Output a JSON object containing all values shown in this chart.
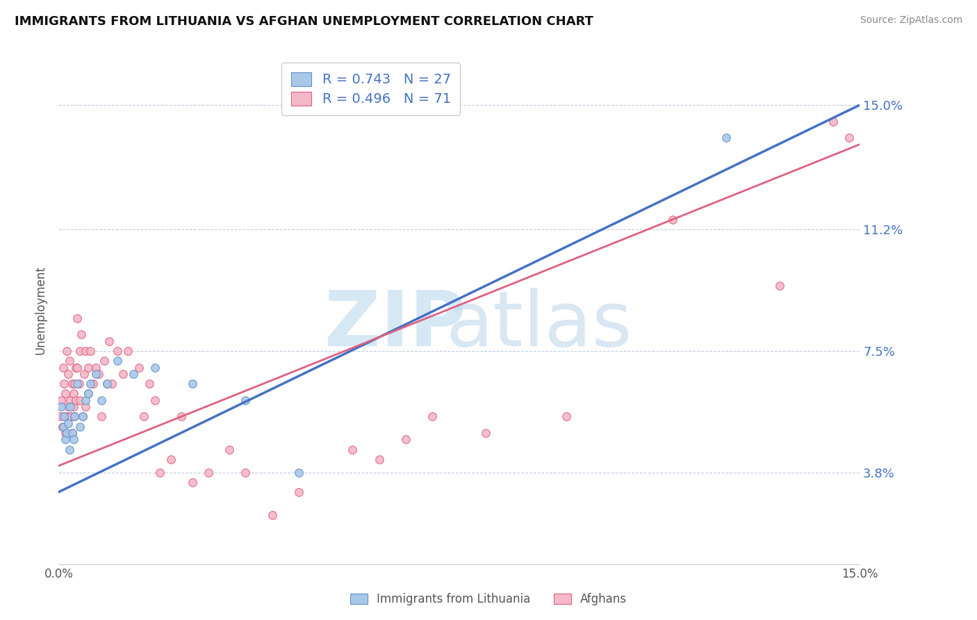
{
  "title": "IMMIGRANTS FROM LITHUANIA VS AFGHAN UNEMPLOYMENT CORRELATION CHART",
  "source": "Source: ZipAtlas.com",
  "ylabel": "Unemployment",
  "ytick_values": [
    3.8,
    7.5,
    11.2,
    15.0
  ],
  "xmin": 0.0,
  "xmax": 15.0,
  "ymin": 1.0,
  "ymax": 16.5,
  "legend1_r": "0.743",
  "legend1_n": "27",
  "legend2_r": "0.496",
  "legend2_n": "71",
  "color_blue_fill": "#a8c8e8",
  "color_pink_fill": "#f4b8c8",
  "color_blue_edge": "#6090c8",
  "color_pink_edge": "#e06080",
  "color_blue_line": "#4472c4",
  "color_pink_line": "#e06080",
  "color_text_blue": "#4472c4",
  "blue_line_start_y": 3.2,
  "blue_line_end_y": 15.0,
  "pink_line_start_y": 4.0,
  "pink_line_end_y": 13.8,
  "series1_x": [
    0.05,
    0.08,
    0.1,
    0.12,
    0.15,
    0.18,
    0.2,
    0.22,
    0.25,
    0.28,
    0.3,
    0.35,
    0.4,
    0.45,
    0.5,
    0.55,
    0.6,
    0.7,
    0.8,
    0.9,
    1.1,
    1.4,
    1.8,
    2.5,
    3.5,
    4.5,
    12.5
  ],
  "series1_y": [
    5.8,
    5.2,
    5.5,
    4.8,
    5.0,
    5.3,
    4.5,
    5.8,
    5.0,
    4.8,
    5.5,
    6.5,
    5.2,
    5.5,
    6.0,
    6.2,
    6.5,
    6.8,
    6.0,
    6.5,
    7.2,
    6.8,
    7.0,
    6.5,
    6.0,
    3.8,
    14.0
  ],
  "series2_x": [
    0.03,
    0.05,
    0.07,
    0.08,
    0.1,
    0.1,
    0.12,
    0.13,
    0.15,
    0.15,
    0.18,
    0.18,
    0.2,
    0.2,
    0.22,
    0.23,
    0.25,
    0.25,
    0.28,
    0.28,
    0.3,
    0.3,
    0.32,
    0.32,
    0.35,
    0.35,
    0.38,
    0.4,
    0.4,
    0.42,
    0.45,
    0.48,
    0.5,
    0.5,
    0.55,
    0.55,
    0.6,
    0.65,
    0.7,
    0.75,
    0.8,
    0.85,
    0.9,
    0.95,
    1.0,
    1.1,
    1.2,
    1.3,
    1.5,
    1.6,
    1.7,
    1.8,
    1.9,
    2.1,
    2.3,
    2.5,
    2.8,
    3.2,
    3.5,
    4.0,
    4.5,
    5.5,
    6.0,
    6.5,
    7.0,
    8.0,
    9.5,
    11.5,
    13.5,
    14.5,
    14.8
  ],
  "series2_y": [
    5.5,
    6.0,
    5.2,
    7.0,
    5.5,
    6.5,
    5.0,
    6.2,
    5.5,
    7.5,
    5.8,
    6.8,
    5.5,
    7.2,
    6.0,
    5.5,
    6.5,
    5.0,
    6.2,
    5.8,
    6.5,
    5.5,
    7.0,
    6.0,
    8.5,
    7.0,
    6.5,
    7.5,
    6.0,
    8.0,
    5.5,
    6.8,
    5.8,
    7.5,
    7.0,
    6.2,
    7.5,
    6.5,
    7.0,
    6.8,
    5.5,
    7.2,
    6.5,
    7.8,
    6.5,
    7.5,
    6.8,
    7.5,
    7.0,
    5.5,
    6.5,
    6.0,
    3.8,
    4.2,
    5.5,
    3.5,
    3.8,
    4.5,
    3.8,
    2.5,
    3.2,
    4.5,
    4.2,
    4.8,
    5.5,
    5.0,
    5.5,
    11.5,
    9.5,
    14.5,
    14.0
  ]
}
